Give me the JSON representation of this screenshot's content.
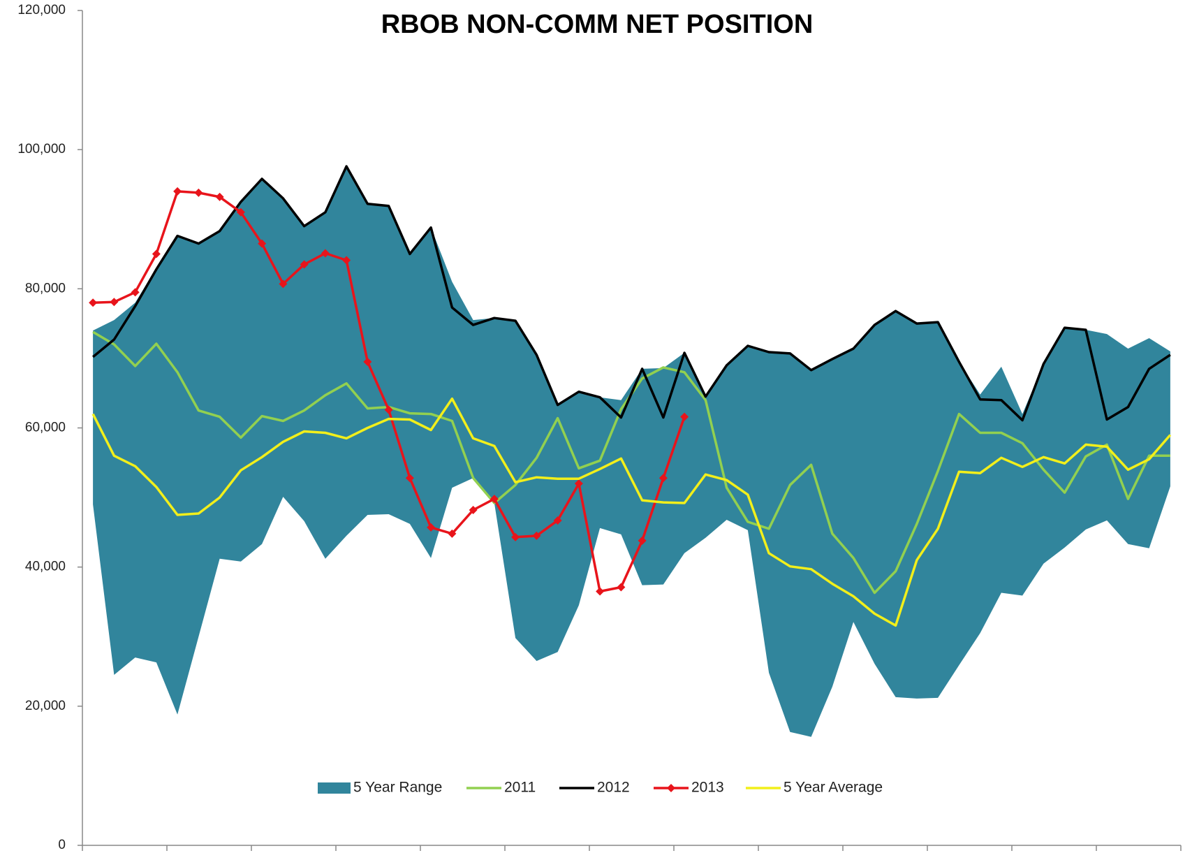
{
  "chart_data": {
    "type": "line",
    "title": "RBOB NON-COMM NET  POSITION",
    "categories": [
      null,
      null,
      null,
      null,
      null,
      null,
      null,
      null,
      null,
      null,
      null,
      null,
      null,
      null,
      null,
      null,
      null,
      null,
      null,
      null,
      null,
      null,
      null,
      null,
      null,
      null,
      null,
      null,
      null,
      null,
      null,
      null,
      null,
      null,
      null,
      null,
      null,
      null,
      null,
      null,
      null,
      null,
      null,
      null,
      null,
      null,
      null,
      null,
      null,
      null,
      null,
      null
    ],
    "ylim": [
      0,
      120000
    ],
    "yticks": [
      {
        "value": 0,
        "label": "0"
      },
      {
        "value": 20000,
        "label": "20,000"
      },
      {
        "value": 40000,
        "label": "40,000"
      },
      {
        "value": 60000,
        "label": "60,000"
      },
      {
        "value": 80000,
        "label": "80,000"
      },
      {
        "value": 100000,
        "label": "100,000"
      },
      {
        "value": 120000,
        "label": "120,000"
      }
    ],
    "legend": "bottom",
    "range": {
      "name": "5 Year Range",
      "color": "#31859c",
      "high": [
        74000,
        75500,
        78000,
        83000,
        87600,
        86500,
        88300,
        92500,
        95800,
        93000,
        89000,
        91000,
        97600,
        92200,
        91900,
        85000,
        88800,
        81000,
        75500,
        75800,
        75400,
        70500,
        63300,
        65200,
        64400,
        64000,
        68500,
        68600,
        70800,
        64500,
        69000,
        71800,
        70900,
        70700,
        68300,
        69900,
        71400,
        74800,
        76800,
        75000,
        75200,
        69500,
        64800,
        68800,
        62000,
        69200,
        74400,
        74100,
        73500,
        71400,
        72900,
        71000
      ],
      "low": [
        49000,
        24500,
        27000,
        26300,
        18800,
        30000,
        41200,
        40800,
        43300,
        50100,
        46600,
        41200,
        44500,
        47500,
        47600,
        46200,
        41300,
        51400,
        52800,
        49200,
        29800,
        26500,
        27800,
        34500,
        45600,
        44700,
        37400,
        37500,
        42000,
        44200,
        46800,
        45300,
        24800,
        16300,
        15600,
        22800,
        32100,
        26100,
        21300,
        21100,
        21200,
        25900,
        30500,
        36300,
        35900,
        40500,
        42800,
        45400,
        46700,
        43300,
        42700,
        51600
      ]
    },
    "series": [
      {
        "name": "2011",
        "color": "#92d050",
        "markers": false,
        "values": [
          73800,
          72000,
          68900,
          72100,
          68000,
          62500,
          61600,
          58600,
          61700,
          61000,
          62500,
          64700,
          66400,
          62800,
          63000,
          62100,
          62000,
          61000,
          52800,
          49200,
          51800,
          55700,
          61400,
          54200,
          55300,
          62700,
          67100,
          68700,
          68000,
          64000,
          51400,
          46500,
          45500,
          51800,
          54700,
          44800,
          41300,
          36300,
          39400,
          46200,
          53800,
          62000,
          59300,
          59300,
          57800,
          54000,
          50700,
          55900,
          57600,
          49800,
          56000,
          56000
        ]
      },
      {
        "name": "2012",
        "color": "#000000",
        "markers": false,
        "values": [
          70200,
          72700,
          77500,
          82800,
          87600,
          86500,
          88300,
          92500,
          95800,
          93000,
          89000,
          91000,
          97600,
          92200,
          91900,
          85000,
          88800,
          77300,
          74800,
          75800,
          75400,
          70500,
          63300,
          65200,
          64400,
          61500,
          68500,
          61500,
          70800,
          64500,
          69000,
          71800,
          70900,
          70700,
          68300,
          69900,
          71400,
          74800,
          76800,
          75000,
          75200,
          69500,
          64100,
          64000,
          61100,
          69200,
          74400,
          74100,
          61200,
          63000,
          68500,
          70500
        ]
      },
      {
        "name": "2013",
        "color": "#e8141b",
        "markers": true,
        "values": [
          78000,
          78100,
          79500,
          85000,
          94000,
          93800,
          93200,
          91000,
          86500,
          80700,
          83500,
          85100,
          84100,
          69500,
          62600,
          52800,
          45700,
          44800,
          48200,
          49800,
          44300,
          44500,
          46700,
          52000,
          36500,
          37100,
          43800,
          52800,
          61600,
          null,
          null,
          null,
          null,
          null,
          null,
          null,
          null,
          null,
          null,
          null,
          null,
          null,
          null,
          null,
          null,
          null,
          null,
          null,
          null,
          null,
          null,
          null
        ]
      },
      {
        "name": "5 Year Average",
        "color": "#f2ef1b",
        "markers": false,
        "values": [
          62000,
          56000,
          54500,
          51500,
          47500,
          47700,
          50000,
          53900,
          55800,
          58000,
          59500,
          59300,
          58500,
          60000,
          61300,
          61200,
          59700,
          64200,
          58500,
          57400,
          52200,
          52900,
          52700,
          52700,
          54100,
          55600,
          49600,
          49300,
          49200,
          53300,
          52500,
          50400,
          42000,
          40100,
          39700,
          37600,
          35800,
          33300,
          31600,
          41000,
          45500,
          53700,
          53500,
          55700,
          54400,
          55800,
          54900,
          57600,
          57300,
          54000,
          55500,
          59000
        ]
      }
    ]
  }
}
